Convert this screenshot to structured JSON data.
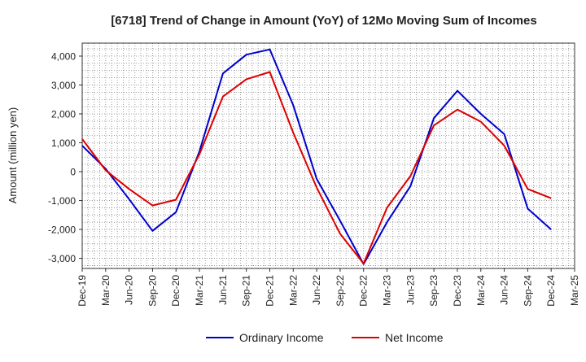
{
  "chart_data": {
    "type": "line",
    "title": "[6718]  Trend of Change in Amount (YoY) of 12Mo Moving Sum of Incomes",
    "xlabel": "",
    "ylabel": "Amount (million yen)",
    "categories": [
      "Dec-19",
      "Mar-20",
      "Jun-20",
      "Sep-20",
      "Dec-20",
      "Mar-21",
      "Jun-21",
      "Sep-21",
      "Dec-21",
      "Mar-22",
      "Jun-22",
      "Sep-22",
      "Dec-22",
      "Mar-23",
      "Jun-23",
      "Sep-23",
      "Dec-23",
      "Mar-24",
      "Jun-24",
      "Sep-24",
      "Dec-24",
      "Mar-25"
    ],
    "yticks": [
      -3000,
      -2000,
      -1000,
      0,
      1000,
      2000,
      3000,
      4000
    ],
    "ytick_labels": [
      "-3,000",
      "-2,000",
      "-1,000",
      "0",
      "1,000",
      "2,000",
      "3,000",
      "4,000"
    ],
    "ylim": [
      -3350,
      4450
    ],
    "grid": true,
    "legend_position": "bottom",
    "series": [
      {
        "name": "Ordinary Income",
        "color": "#0000cc",
        "values": [
          900,
          100,
          -950,
          -2050,
          -1400,
          700,
          3400,
          4050,
          4230,
          2300,
          -250,
          -1700,
          -3200,
          -1750,
          -500,
          1850,
          2800,
          2000,
          1300,
          -1280,
          -2000,
          null
        ]
      },
      {
        "name": "Net Income",
        "color": "#dd0000",
        "values": [
          1130,
          50,
          -600,
          -1170,
          -970,
          600,
          2600,
          3200,
          3450,
          1350,
          -550,
          -2150,
          -3180,
          -1250,
          -150,
          1600,
          2150,
          1730,
          900,
          -600,
          -920,
          null
        ]
      }
    ]
  }
}
